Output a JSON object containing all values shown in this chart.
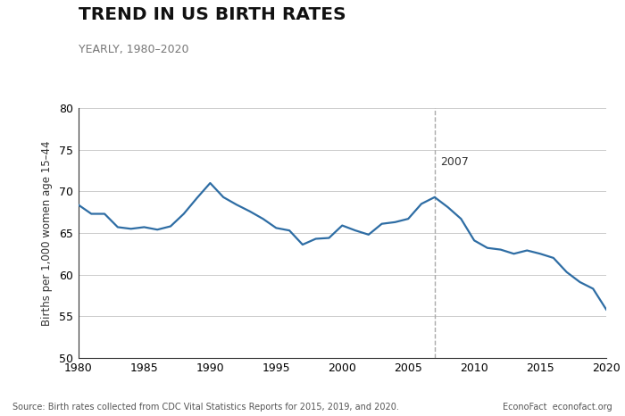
{
  "title": "TREND IN US BIRTH RATES",
  "subtitle": "YEARLY, 1980–2020",
  "ylabel": "Births per 1,000 women age 15–44",
  "source_left": "Source: Birth rates collected from CDC Vital Statistics Reports for 2015, 2019, and 2020.",
  "source_right": "EconoFact  econofact.org",
  "annotation_year": 2007,
  "annotation_text": "2007",
  "line_color": "#2e6da4",
  "dashed_color": "#aaaaaa",
  "background_color": "#ffffff",
  "xlim": [
    1980,
    2020
  ],
  "ylim": [
    50,
    80
  ],
  "yticks": [
    50,
    55,
    60,
    65,
    70,
    75,
    80
  ],
  "xticks": [
    1980,
    1985,
    1990,
    1995,
    2000,
    2005,
    2010,
    2015,
    2020
  ],
  "years": [
    1980,
    1981,
    1982,
    1983,
    1984,
    1985,
    1986,
    1987,
    1988,
    1989,
    1990,
    1991,
    1992,
    1993,
    1994,
    1995,
    1996,
    1997,
    1998,
    1999,
    2000,
    2001,
    2002,
    2003,
    2004,
    2005,
    2006,
    2007,
    2008,
    2009,
    2010,
    2011,
    2012,
    2013,
    2014,
    2015,
    2016,
    2017,
    2018,
    2019,
    2020
  ],
  "values": [
    68.4,
    67.3,
    67.3,
    65.7,
    65.5,
    65.7,
    65.4,
    65.8,
    67.3,
    69.2,
    71.0,
    69.3,
    68.4,
    67.6,
    66.7,
    65.6,
    65.3,
    63.6,
    64.3,
    64.4,
    65.9,
    65.3,
    64.8,
    66.1,
    66.3,
    66.7,
    68.5,
    69.3,
    68.1,
    66.7,
    64.1,
    63.2,
    63.0,
    62.5,
    62.9,
    62.5,
    62.0,
    60.3,
    59.1,
    58.3,
    55.8
  ]
}
